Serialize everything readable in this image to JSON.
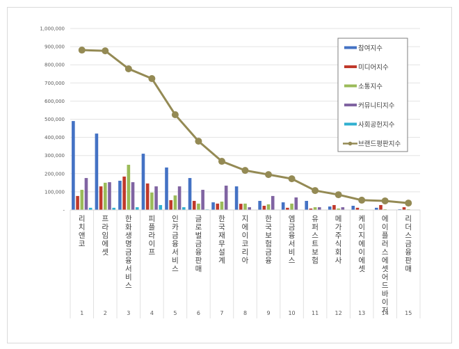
{
  "chart_data": {
    "type": "bar",
    "combo": "grouped bars + line",
    "title": "",
    "xlabel": "",
    "ylabel": "",
    "ylim": [
      0,
      1000000
    ],
    "yticks": [
      0,
      100000,
      200000,
      300000,
      400000,
      500000,
      600000,
      700000,
      800000,
      900000,
      1000000
    ],
    "ytick_labels": [
      "-",
      "100,000",
      "200,000",
      "300,000",
      "400,000",
      "500,000",
      "600,000",
      "700,000",
      "800,000",
      "900,000",
      "1,000,000"
    ],
    "grid": true,
    "legend_position": "right-top inside",
    "categories": [
      "1",
      "2",
      "3",
      "4",
      "5",
      "6",
      "7",
      "8",
      "9",
      "10",
      "11",
      "12",
      "13",
      "14",
      "15"
    ],
    "category_names": [
      "리치앤코",
      "프라임에셋",
      "한화생명금융서비스",
      "피플라이프",
      "인카금융서비스",
      "글로벌금융판매",
      "한국재무설계",
      "지에이코리아",
      "한국보험금융",
      "엠금융서비스",
      "유퍼스트보험",
      "메가주식회사",
      "케이지에이에셋",
      "에이플러스에셋어드바이저",
      "리더스금융판매"
    ],
    "series": [
      {
        "name": "참여지수",
        "type": "bar",
        "color": "#4472c4",
        "values": [
          490000,
          421000,
          161000,
          310000,
          234000,
          176000,
          42000,
          130000,
          50000,
          42000,
          50000,
          19000,
          23000,
          12000,
          4000
        ]
      },
      {
        "name": "미디어지수",
        "type": "bar",
        "color": "#c0392b",
        "values": [
          77000,
          130000,
          184000,
          146000,
          54000,
          50000,
          35000,
          34000,
          23000,
          12000,
          8000,
          27000,
          12000,
          27000,
          15000
        ]
      },
      {
        "name": "소통지수",
        "type": "bar",
        "color": "#9bbb59",
        "values": [
          111000,
          150000,
          249000,
          96000,
          80000,
          35000,
          46000,
          35000,
          31000,
          35000,
          15000,
          8000,
          4000,
          4000,
          4000
        ]
      },
      {
        "name": "커뮤니티지수",
        "type": "bar",
        "color": "#8064a2",
        "values": [
          176000,
          153000,
          153000,
          130000,
          130000,
          111000,
          134000,
          15000,
          77000,
          69000,
          15000,
          15000,
          2000,
          1000,
          1000
        ]
      },
      {
        "name": "사회공헌지수",
        "type": "bar",
        "color": "#31b0d0",
        "values": [
          12000,
          12000,
          15000,
          27000,
          15000,
          3000,
          2000,
          1000,
          2000,
          2000,
          1000,
          1000,
          1000,
          1000,
          1000
        ]
      },
      {
        "name": "브랜드평판지수",
        "type": "line",
        "color": "#948a54",
        "values": [
          881000,
          877000,
          778000,
          724000,
          525000,
          379000,
          268000,
          218000,
          195000,
          172000,
          107000,
          84000,
          54000,
          50000,
          38000
        ]
      }
    ]
  }
}
